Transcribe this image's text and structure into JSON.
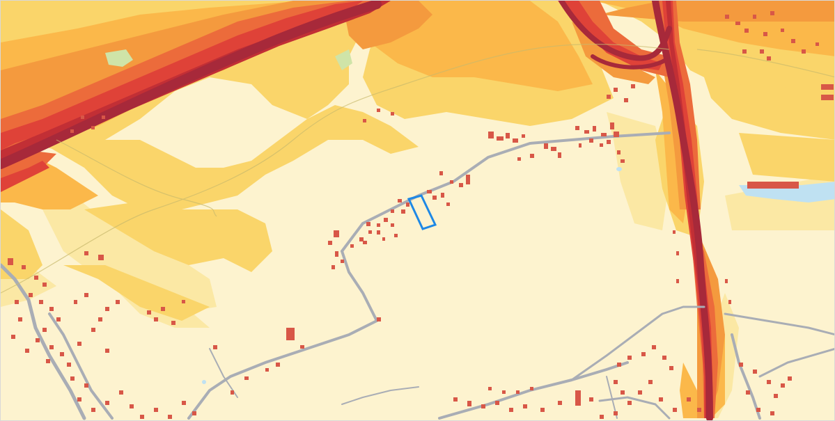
{
  "map": {
    "type": "noise-level-overlay",
    "colors": {
      "background": "#fdf3cf",
      "level_1": "#fbe8a4",
      "level_2": "#fad56a",
      "level_3": "#fbb84a",
      "level_4": "#f49a3e",
      "level_5": "#ec6b3b",
      "level_6": "#df4238",
      "level_7": "#c22f35",
      "road_core": "#a7293a",
      "local_road": "#a9adb5",
      "building": "#d85747",
      "water": "#bfe1f2",
      "selection_outline": "#1e88e5",
      "grass_patch": "#cfe4a8"
    },
    "selected_parcel": {
      "label": "",
      "icon": "selection-rectangle"
    }
  }
}
